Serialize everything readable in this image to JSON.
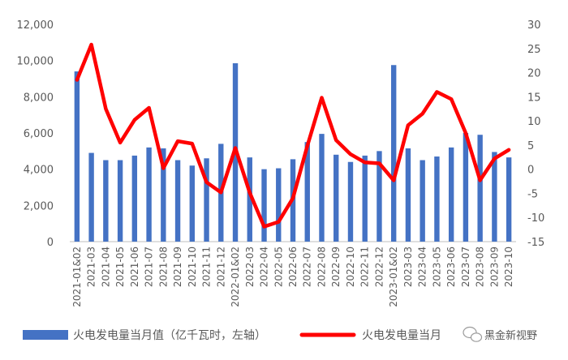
{
  "chart_data": {
    "type": "bar+line",
    "categories": [
      "2021-01&02",
      "2021-03",
      "2021-04",
      "2021-05",
      "2021-06",
      "2021-07",
      "2021-08",
      "2021-09",
      "2021-10",
      "2021-11",
      "2021-12",
      "2022-01&02",
      "2022-03",
      "2022-04",
      "2022-05",
      "2022-06",
      "2022-07",
      "2022-08",
      "2022-09",
      "2022-10",
      "2022-11",
      "2022-12",
      "2023-01&02",
      "2023-03",
      "2023-04",
      "2023-05",
      "2023-06",
      "2023-07",
      "2023-08",
      "2023-09",
      "2023-10"
    ],
    "series": [
      {
        "name": "火电发电量当月值（亿千瓦时，左轴）",
        "type": "bar",
        "axis": "left",
        "color": "#4472C4",
        "values": [
          9400,
          4900,
          4500,
          4500,
          4750,
          5200,
          5150,
          4500,
          4200,
          4600,
          5400,
          9850,
          4650,
          4000,
          4050,
          4550,
          5500,
          5950,
          4800,
          4400,
          4750,
          5000,
          9750,
          5150,
          4500,
          4700,
          5200,
          6000,
          5900,
          4950,
          4650
        ]
      },
      {
        "name": "火电发电量当月",
        "type": "line",
        "axis": "right",
        "color": "#FF0000",
        "values": [
          18.5,
          25.8,
          12.5,
          5.5,
          10.2,
          12.7,
          0.2,
          5.8,
          5.3,
          -2.7,
          -4.8,
          4.4,
          -4.9,
          -11.9,
          -10.9,
          -6,
          4.8,
          14.8,
          6,
          3.1,
          1.4,
          1.2,
          -2.3,
          9.1,
          11.5,
          16,
          14.5,
          7.5,
          -2.3,
          2.2,
          4
        ]
      }
    ],
    "y_left": {
      "ylim": [
        0,
        12000
      ],
      "ticks": [
        "0",
        "2,000",
        "4,000",
        "6,000",
        "8,000",
        "10,000",
        "12,000"
      ]
    },
    "y_right": {
      "ylim": [
        -15,
        30
      ],
      "ticks": [
        "-15",
        "-10",
        "-5",
        "0",
        "5",
        "10",
        "15",
        "20",
        "25",
        "30"
      ]
    },
    "grid": false,
    "legend": "bottom",
    "watermark": "黑金新视野"
  },
  "colors": {
    "bar": "#4472C4",
    "line": "#FF0000"
  },
  "icons": {
    "watermark": "wechat-logo-icon"
  }
}
